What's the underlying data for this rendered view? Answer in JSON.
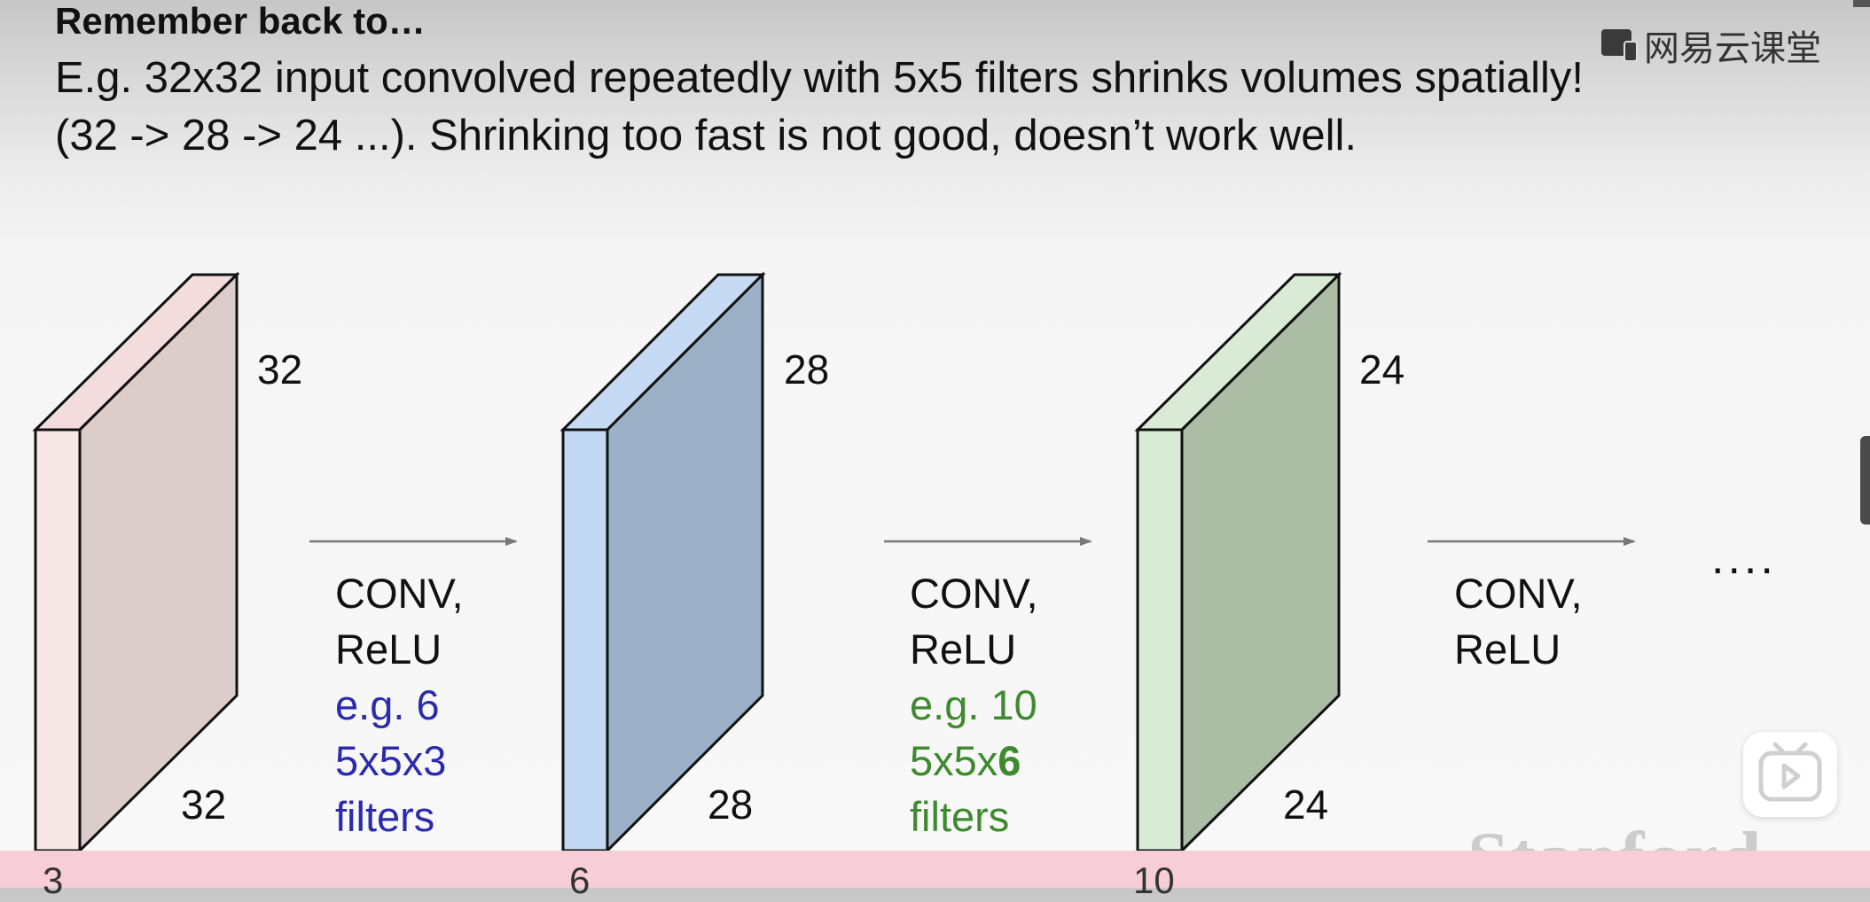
{
  "slide": {
    "title": "Remember back to…",
    "line1": "E.g. 32x32 input convolved repeatedly with 5x5 filters shrinks volumes spatially!",
    "line2": "(32 -> 28 -> 24 ...). Shrinking too fast is not good, doesn’t work well."
  },
  "watermark": {
    "text": "网易云课堂"
  },
  "volumes": [
    {
      "height_label": "32",
      "width_label": "32",
      "depth_label": "3"
    },
    {
      "height_label": "28",
      "width_label": "28",
      "depth_label": "6"
    },
    {
      "height_label": "24",
      "width_label": "24",
      "depth_label": "10"
    }
  ],
  "operations": [
    {
      "l1": "CONV,",
      "l2": "ReLU",
      "l3": "e.g. 6",
      "l4": "5x5x3",
      "l5": "filters"
    },
    {
      "l1": "CONV,",
      "l2": "ReLU",
      "l3": "e.g. 10",
      "l4a": "5x5x",
      "l4b": "6",
      "l5": "filters"
    },
    {
      "l1": "CONV,",
      "l2": "ReLU"
    }
  ],
  "ellipsis": "....",
  "logo": {
    "text": "Stanford"
  },
  "colors": {
    "vol1_front": "#f6e6e6",
    "vol1_top": "#f3dcdc",
    "vol1_side": "#dcccca",
    "vol2_front": "#c3d8f2",
    "vol2_top": "#c6dbf3",
    "vol2_side": "#9cb0c8",
    "vol3_front": "#d9ebd4",
    "vol3_top": "#d9ebd4",
    "vol3_side": "#acbda6",
    "blue_text": "#2b2baf",
    "green_text": "#3e8a2e"
  }
}
